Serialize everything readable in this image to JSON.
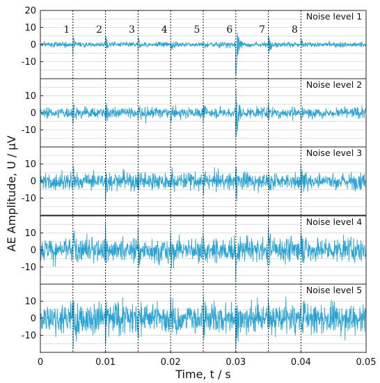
{
  "chart_data": {
    "type": "line",
    "xlabel": "Time, t / s",
    "ylabel": "AE Amplitude, U / μV",
    "xlim": [
      0,
      0.05
    ],
    "x_ticks": [
      "0",
      "0.01",
      "0.02",
      "0.03",
      "0.04",
      "0.05"
    ],
    "x_tick_values": [
      0,
      0.01,
      0.02,
      0.03,
      0.04,
      0.05
    ],
    "grid": true,
    "series_color": "#2ba3d3",
    "event_times": [
      0.005,
      0.01,
      0.015,
      0.02,
      0.025,
      0.03,
      0.035,
      0.04
    ],
    "event_labels": [
      "1",
      "2",
      "3",
      "4",
      "5",
      "6",
      "7",
      "8"
    ],
    "panels": [
      {
        "title": "Noise level 1",
        "ylim": [
          -20,
          20
        ],
        "y_ticks": [
          "20",
          "10",
          "0",
          "-10"
        ],
        "y_tick_values": [
          20,
          10,
          0,
          -10
        ],
        "noise_amplitude_uV": 2.2,
        "burst_peaks_uV": [
          5,
          5,
          5,
          4,
          3,
          20,
          7,
          3
        ]
      },
      {
        "title": "Noise level 2",
        "ylim": [
          -20,
          20
        ],
        "y_ticks": [
          "10",
          "0",
          "-10"
        ],
        "y_tick_values": [
          10,
          0,
          -10
        ],
        "noise_amplitude_uV": 4.5,
        "burst_peaks_uV": [
          7,
          7,
          6,
          6,
          5,
          20,
          7,
          5
        ]
      },
      {
        "title": "Noise level 3",
        "ylim": [
          -20,
          20
        ],
        "y_ticks": [
          "10",
          "0",
          "-10"
        ],
        "y_tick_values": [
          10,
          0,
          -10
        ],
        "noise_amplitude_uV": 7,
        "burst_peaks_uV": [
          9,
          9,
          8,
          8,
          7,
          14,
          8,
          7
        ]
      },
      {
        "title": "Noise level 4",
        "ylim": [
          -20,
          20
        ],
        "y_ticks": [
          "10",
          "0",
          "-10"
        ],
        "y_tick_values": [
          10,
          0,
          -10
        ],
        "noise_amplitude_uV": 10,
        "burst_peaks_uV": [
          12,
          11,
          11,
          10,
          10,
          16,
          11,
          10
        ]
      },
      {
        "title": "Noise level 5",
        "ylim": [
          -20,
          20
        ],
        "y_ticks": [
          "10",
          "0",
          "-10"
        ],
        "y_tick_values": [
          10,
          0,
          -10
        ],
        "noise_amplitude_uV": 13,
        "burst_peaks_uV": [
          14,
          14,
          13,
          13,
          13,
          15,
          13,
          13
        ]
      }
    ]
  }
}
